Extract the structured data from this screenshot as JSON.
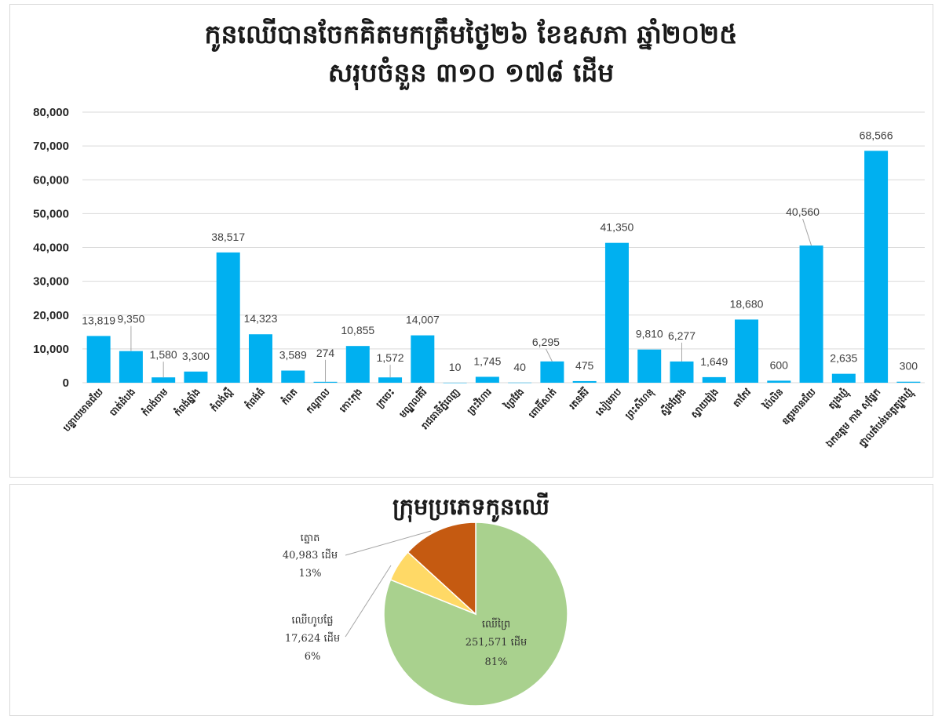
{
  "chart_data": [
    {
      "type": "bar",
      "title": "កូនឈើបានចែកគិតមកត្រឹមថ្ងៃ២៦ ខែឧសភា ឆ្នាំ២០២៥",
      "subtitle": "សរុបចំនួន ៣១០ ១៧៨ ដើម",
      "xlabel": "",
      "ylabel": "",
      "categories": [
        "បន្ទាយមានជ័យ",
        "បាត់ដំបង",
        "កំពង់ចាម",
        "កំពង់ឆ្នាំង",
        "កំពង់ស្ពឺ",
        "កំពង់ធំ",
        "កំពត",
        "កណ្តាល",
        "កោះកុង",
        "ក្រចេះ",
        "មណ្ឌលគិរី",
        "រាជធានីភ្នំពេញ",
        "ព្រះវិហារ",
        "ព្រៃវែង",
        "ពោធិ៍សាត់",
        "រតនគិរី",
        "សៀមរាប",
        "ព្រះសីហនុ",
        "ស្ទឹងត្រែង",
        "ស្វាយរៀង",
        "តាកែវ",
        "ប៉ៃលិន",
        "ឧត្តរមានជ័យ",
        "ត្បូងឃ្មុំ",
        "ឯកឧត្តម កាង សុផ្លែក",
        "ថ្នាលតំបន់ខេត្តត្បូងឃ្មុំ"
      ],
      "values": [
        13819,
        9350,
        1580,
        3300,
        38517,
        14323,
        3589,
        274,
        10855,
        1572,
        14007,
        10,
        1745,
        40,
        6295,
        475,
        41350,
        9810,
        6277,
        1649,
        18680,
        600,
        40560,
        2635,
        68566,
        300
      ],
      "value_labels": [
        "13,819",
        "9,350",
        "1,580",
        "3,300",
        "38,517",
        "14,323",
        "3,589",
        "274",
        "10,855",
        "1,572",
        "14,007",
        "10",
        "1,745",
        "40",
        "6,295",
        "475",
        "41,350",
        "9,810",
        "6,277",
        "1,649",
        "18,680",
        "600",
        "40,560",
        "2,635",
        "68,566",
        "300"
      ],
      "yticks": [
        "0",
        "10,000",
        "20,000",
        "30,000",
        "40,000",
        "50,000",
        "60,000",
        "70,000",
        "80,000"
      ],
      "ylim": [
        0,
        80000
      ],
      "grid": true,
      "color": "#00b0f0"
    },
    {
      "type": "pie",
      "title": "ក្រុមប្រភេទកូនឈើ",
      "slices": [
        {
          "name": "ឈើព្រៃ",
          "value": 251571,
          "value_label": "251,571 ដើម",
          "percent": "81%",
          "color": "#a9d18e"
        },
        {
          "name": "ឈើហូបផ្លែ",
          "value": 17624,
          "value_label": "17,624 ដើម",
          "percent": "6%",
          "color": "#ffd966"
        },
        {
          "name": "ត្នោត",
          "value": 40983,
          "value_label": "40,983 ដើម",
          "percent": "13%",
          "color": "#c55a11"
        }
      ]
    }
  ]
}
